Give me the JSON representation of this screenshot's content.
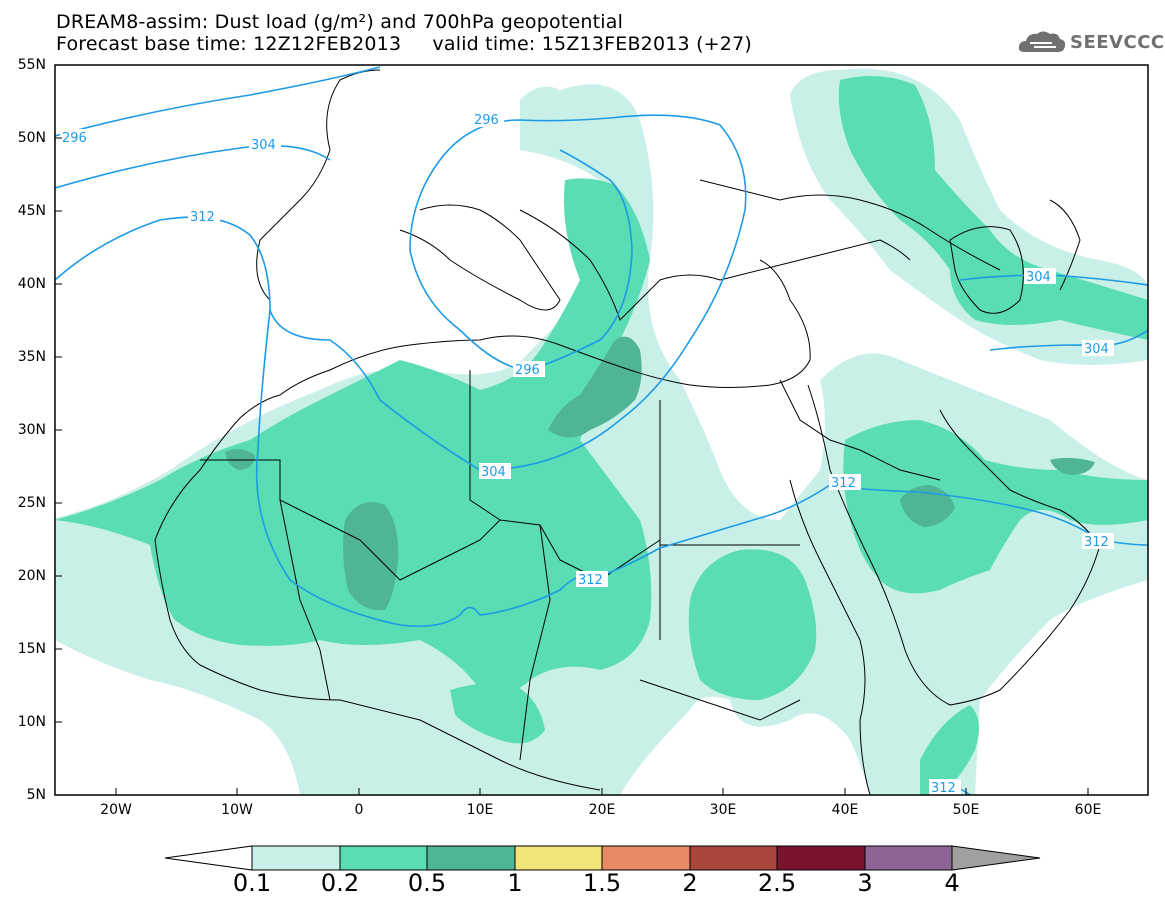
{
  "header": {
    "title_line1": "DREAM8-assim: Dust load (g/m²) and 700hPa geopotential",
    "title_line2": "Forecast base time: 12Z12FEB2013     valid time: 15Z13FEB2013 (+27)"
  },
  "logo": {
    "text": "SEEVCCC",
    "icon": "cloud-icon"
  },
  "axes": {
    "lat_labels": [
      "55N",
      "50N",
      "45N",
      "40N",
      "35N",
      "30N",
      "25N",
      "20N",
      "15N",
      "10N",
      "5N"
    ],
    "lon_labels": [
      "20W",
      "10W",
      "0",
      "10E",
      "20E",
      "30E",
      "40E",
      "50E",
      "60E"
    ],
    "lon_range": [
      -25,
      65
    ],
    "lat_range": [
      5,
      55
    ]
  },
  "contours": {
    "geopotential_labels": [
      "296",
      "304",
      "312",
      "296",
      "304",
      "312",
      "296",
      "304",
      "304",
      "312",
      "312",
      "312"
    ]
  },
  "colorbar": {
    "labels": [
      "0.1",
      "0.2",
      "0.5",
      "1",
      "1.5",
      "2",
      "2.5",
      "3",
      "4"
    ],
    "colors": [
      "#c8f0e8",
      "#5adcb4",
      "#50b496",
      "#f0e678",
      "#e68c64",
      "#aa463c",
      "#78142d",
      "#8c6496",
      "#a0a0a0"
    ]
  },
  "colors": {
    "dust_low": "#c8f0e8",
    "dust_mid": "#5adcb4",
    "dust_high": "#50b496",
    "dust_top": "#6e8a7a",
    "contour": "#1e9be6"
  }
}
